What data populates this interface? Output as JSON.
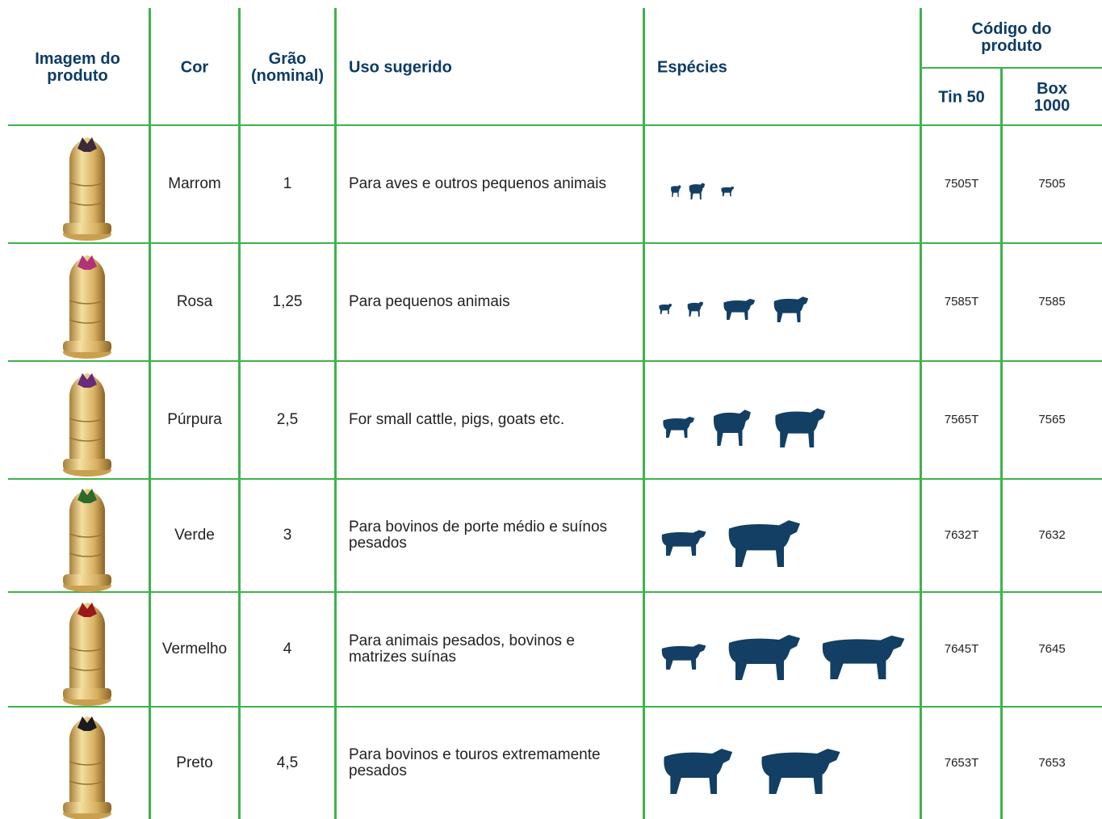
{
  "header": {
    "image": "Imagem do\nproduto",
    "color": "Cor",
    "grain": "Grão\n(nominal)",
    "use": "Uso sugerido",
    "species": "Espécies",
    "code": "Código do produto",
    "tin": "Tin 50",
    "box": "Box 1000"
  },
  "rows": [
    {
      "color": "Marrom",
      "grain": "1",
      "use": "Para aves e outros pequenos animais",
      "tin": "7505T",
      "box": "7505",
      "tip": "#3a2a3a"
    },
    {
      "color": "Rosa",
      "grain": "1,25",
      "use": "Para pequenos animais",
      "tin": "7585T",
      "box": "7585",
      "tip": "#b0327a"
    },
    {
      "color": "Púrpura",
      "grain": "2,5",
      "use": "For small cattle, pigs, goats etc.",
      "tin": "7565T",
      "box": "7565",
      "tip": "#6a2a7a"
    },
    {
      "color": "Verde",
      "grain": "3",
      "use": "Para bovinos de porte médio e suínos\npesados",
      "tin": "7632T",
      "box": "7632",
      "tip": "#2f6a2a"
    },
    {
      "color": "Vermelho",
      "grain": "4",
      "use": "Para animais pesados,  bovinos e\nmatrizes suínas",
      "tin": "7645T",
      "box": "7645",
      "tip": "#9a1a1a"
    },
    {
      "color": "Preto",
      "grain": "4,5",
      "use": "Para bovinos e touros extremamente\npesados",
      "tin": "7653T",
      "box": "7653",
      "tip": "#1a1a22"
    }
  ]
}
